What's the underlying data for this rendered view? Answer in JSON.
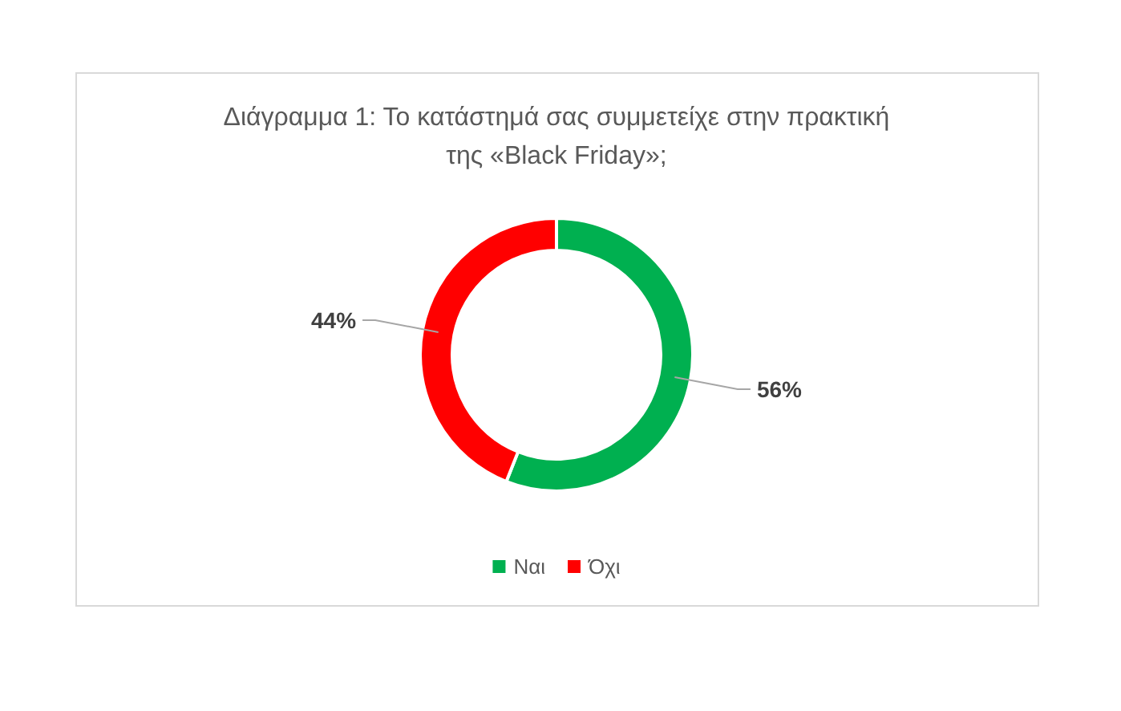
{
  "chart_data": {
    "type": "donut",
    "title": "Διάγραμμα 1: Το κατάστημά σας συμμετείχε στην πρακτική της «Black Friday»;",
    "categories": [
      "Ναι",
      "Όχι"
    ],
    "values": [
      56,
      44
    ],
    "colors": [
      "#00b050",
      "#ff0000"
    ],
    "value_labels": [
      "56%",
      "44%"
    ],
    "legend": "bottom"
  }
}
